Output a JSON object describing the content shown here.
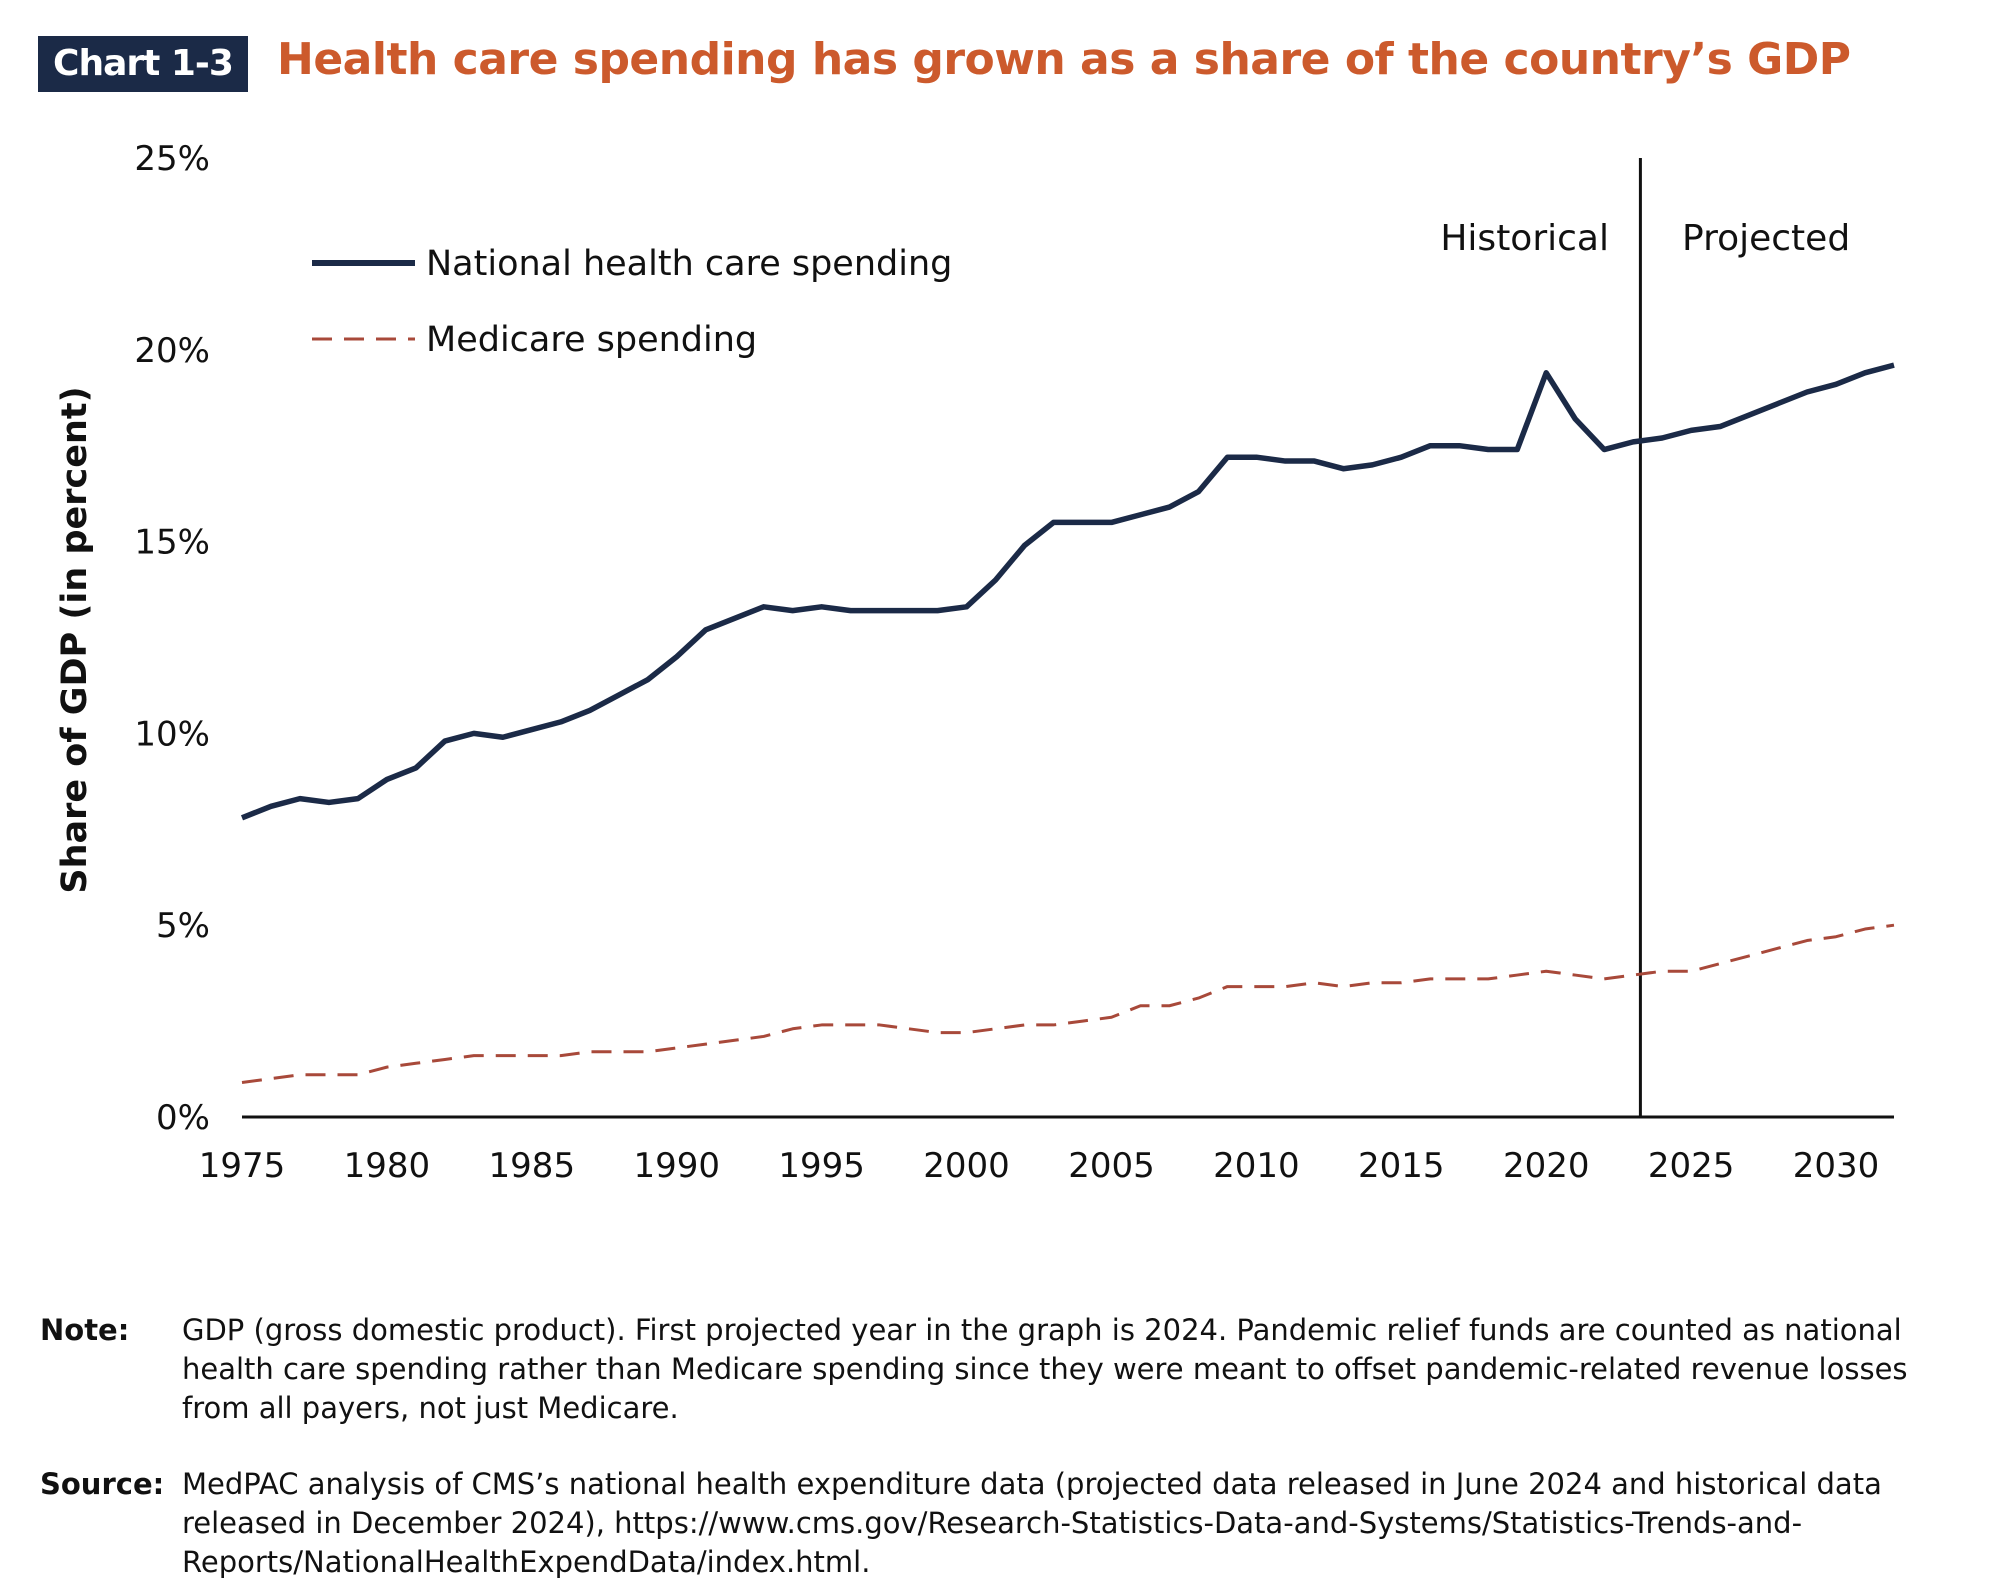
{
  "header": {
    "badge": "Chart 1-3",
    "title": "Health care spending has grown as a share of the country’s GDP"
  },
  "chart_data": {
    "type": "line",
    "title": "Health care spending has grown as a share of the country’s GDP",
    "xlabel": "",
    "ylabel": "Share of GDP (in percent)",
    "xlim": [
      1975,
      2032
    ],
    "ylim": [
      0,
      25
    ],
    "x_ticks": [
      "1975",
      "1980",
      "1985",
      "1990",
      "1995",
      "2000",
      "2005",
      "2010",
      "2015",
      "2020",
      "2025",
      "2030"
    ],
    "y_ticks": [
      "0%",
      "5%",
      "10%",
      "15%",
      "20%",
      "25%"
    ],
    "grid": false,
    "legend_position": "top-left",
    "annotations": [
      "Historical",
      "Projected"
    ],
    "x": [
      1975,
      1976,
      1977,
      1978,
      1979,
      1980,
      1981,
      1982,
      1983,
      1984,
      1985,
      1986,
      1987,
      1988,
      1989,
      1990,
      1991,
      1992,
      1993,
      1994,
      1995,
      1996,
      1997,
      1998,
      1999,
      2000,
      2001,
      2002,
      2003,
      2004,
      2005,
      2006,
      2007,
      2008,
      2009,
      2010,
      2011,
      2012,
      2013,
      2014,
      2015,
      2016,
      2017,
      2018,
      2019,
      2020,
      2021,
      2022,
      2023,
      2024,
      2025,
      2026,
      2027,
      2028,
      2029,
      2030,
      2031,
      2032
    ],
    "series": [
      {
        "name": "National health care spending",
        "color": "#1b2a47",
        "style": "solid",
        "values": [
          7.8,
          8.1,
          8.3,
          8.2,
          8.3,
          8.8,
          9.1,
          9.8,
          10.0,
          9.9,
          10.1,
          10.3,
          10.6,
          11.0,
          11.4,
          12.0,
          12.7,
          13.0,
          13.3,
          13.2,
          13.3,
          13.2,
          13.2,
          13.2,
          13.2,
          13.3,
          14.0,
          14.9,
          15.5,
          15.5,
          15.5,
          15.7,
          15.9,
          16.3,
          17.2,
          17.2,
          17.1,
          17.1,
          16.9,
          17.0,
          17.2,
          17.5,
          17.5,
          17.4,
          17.4,
          19.4,
          18.2,
          17.4,
          17.6,
          17.7,
          17.9,
          18.0,
          18.3,
          18.6,
          18.9,
          19.1,
          19.4,
          19.6
        ]
      },
      {
        "name": "Medicare spending",
        "color": "#a8493a",
        "style": "dashed",
        "values": [
          0.9,
          1.0,
          1.1,
          1.1,
          1.1,
          1.3,
          1.4,
          1.5,
          1.6,
          1.6,
          1.6,
          1.6,
          1.7,
          1.7,
          1.7,
          1.8,
          1.9,
          2.0,
          2.1,
          2.3,
          2.4,
          2.4,
          2.4,
          2.3,
          2.2,
          2.2,
          2.3,
          2.4,
          2.4,
          2.5,
          2.6,
          2.9,
          2.9,
          3.1,
          3.4,
          3.4,
          3.4,
          3.5,
          3.4,
          3.5,
          3.5,
          3.6,
          3.6,
          3.6,
          3.7,
          3.8,
          3.7,
          3.6,
          3.7,
          3.8,
          3.8,
          4.0,
          4.2,
          4.4,
          4.6,
          4.7,
          4.9,
          5.0
        ]
      }
    ]
  },
  "notes": {
    "note_label": "Note:",
    "note_text": "GDP (gross domestic product). First projected year in the graph is 2024. Pandemic relief funds are counted as national health care spending rather than Medicare spending since they were meant to offset pandemic-related revenue losses from all payers, not just Medicare.",
    "source_label": "Source:",
    "source_text": "MedPAC analysis of CMS’s national health expenditure data (projected data released in June 2024 and historical data released in December 2024), https://www.cms.gov/Research-Statistics-Data-and-Systems/Statistics-Trends-and-Reports/NationalHealthExpendData/index.html."
  }
}
